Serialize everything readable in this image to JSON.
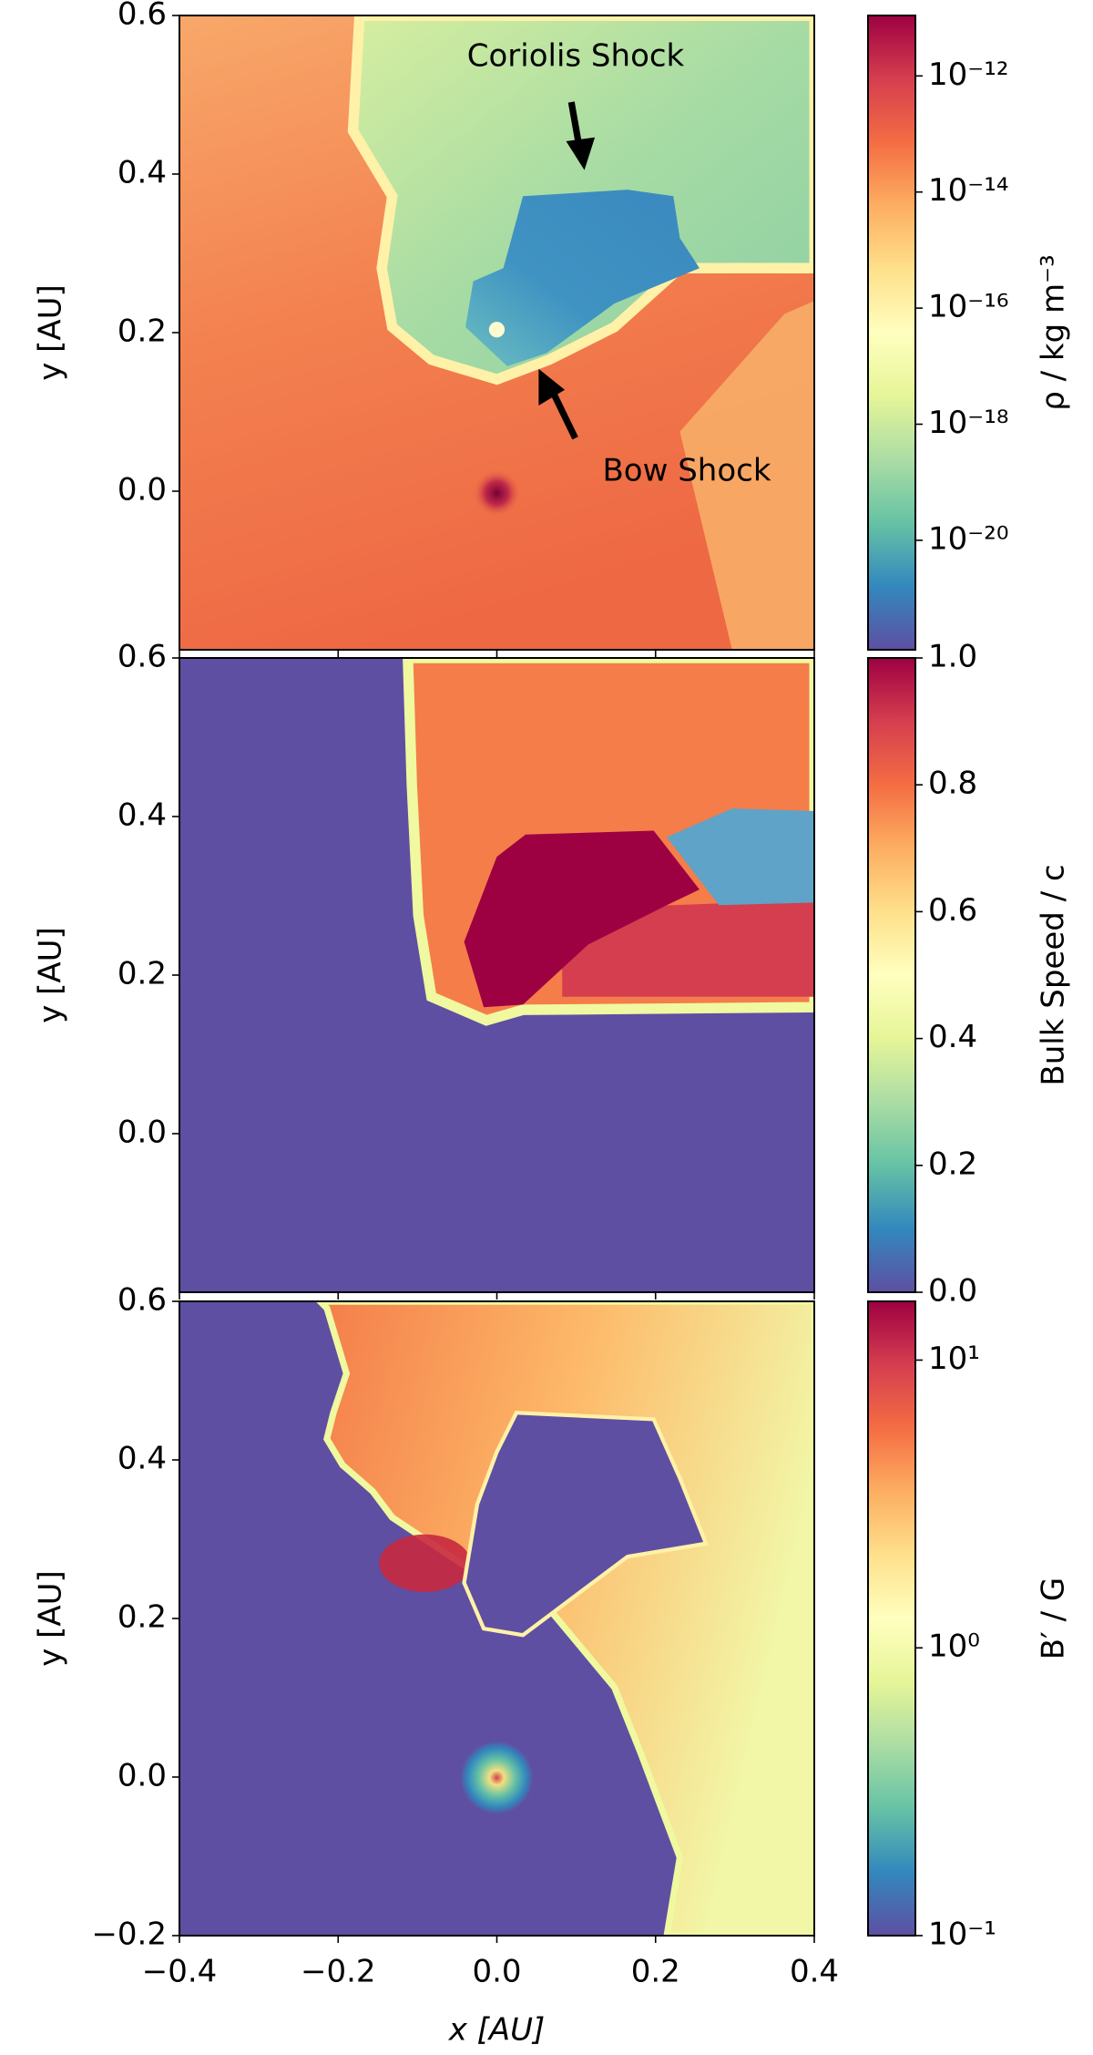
{
  "chart_data": [
    {
      "type": "heatmap",
      "y_label": "y [AU]",
      "xlim": [
        -0.4,
        0.4
      ],
      "xticks": [
        -0.4,
        -0.2,
        0,
        0.2,
        0.4
      ],
      "ylim": [
        -0.2,
        0.6
      ],
      "yticks": [
        {
          "value": 0,
          "label": "0.0"
        },
        0.2,
        0.4,
        0.6
      ],
      "colormap": "Spectral_r",
      "colorbar": {
        "label": "ρ / kg m⁻³",
        "scale": "log",
        "lim": [
          1.3e-22,
          1.1e-11
        ],
        "ticks": [
          {
            "value": 1e-12,
            "label": "10⁻¹²"
          },
          {
            "value": 1e-14,
            "label": "10⁻¹⁴"
          },
          {
            "value": 1e-16,
            "label": "10⁻¹⁶"
          },
          {
            "value": 1e-18,
            "label": "10⁻¹⁸"
          },
          {
            "value": 1e-20,
            "label": "10⁻²⁰"
          }
        ]
      },
      "annotations": [
        "Coriolis Shock",
        "Bow Shock"
      ]
    },
    {
      "type": "heatmap",
      "y_label": "y [AU]",
      "xlim": [
        -0.4,
        0.4
      ],
      "xticks": [
        -0.4,
        -0.2,
        0,
        0.2,
        0.4
      ],
      "ylim": [
        -0.2,
        0.6
      ],
      "yticks": [
        {
          "value": 0,
          "label": "0.0"
        },
        0.2,
        0.4,
        0.6
      ],
      "colormap": "Spectral_r",
      "colorbar": {
        "label": "Bulk Speed / c",
        "scale": "linear",
        "lim": [
          0,
          1
        ],
        "ticks": [
          {
            "value": 0,
            "label": "0.0"
          },
          0.2,
          0.4,
          0.6,
          0.8,
          {
            "value": 1,
            "label": "1.0"
          }
        ]
      }
    },
    {
      "type": "heatmap",
      "y_label": "y [AU]",
      "x_label": "x [AU]",
      "xlim": [
        -0.4,
        0.4
      ],
      "xticks": [
        {
          "value": -0.4,
          "label": "−0.4"
        },
        {
          "value": -0.2,
          "label": "−0.2"
        },
        {
          "value": 0,
          "label": "0.0"
        },
        0.2,
        0.4
      ],
      "ylim": [
        -0.2,
        0.6
      ],
      "yticks": [
        {
          "value": -0.2,
          "label": "−0.2"
        },
        {
          "value": 0,
          "label": "0.0"
        },
        0.2,
        0.4,
        0.6
      ],
      "colormap": "Spectral_r",
      "colorbar": {
        "label": "B′ / G",
        "scale": "log",
        "lim": [
          0.1,
          16
        ],
        "ticks": [
          {
            "value": 10,
            "label": "10¹"
          },
          {
            "value": 1,
            "label": "10⁰"
          },
          {
            "value": 0.1,
            "label": "10⁻¹"
          }
        ]
      }
    }
  ]
}
